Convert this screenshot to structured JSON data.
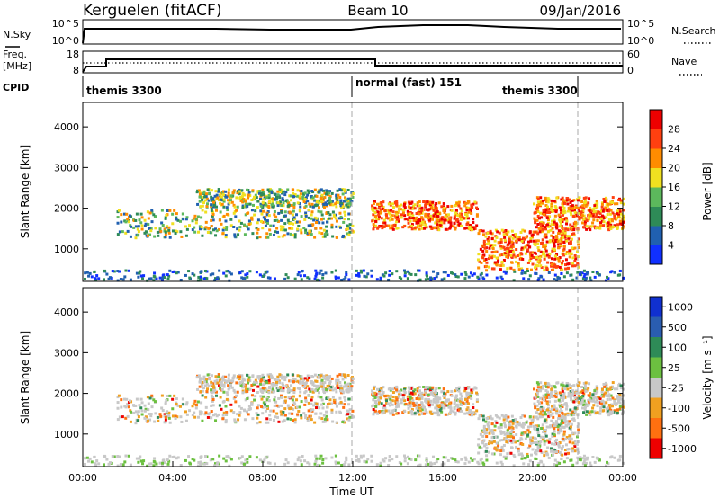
{
  "header": {
    "station": "Kerguelen (fitACF)",
    "beam": "Beam 10",
    "date": "09/Jan/2016"
  },
  "aux_panels": {
    "nsky_label": "N.Sky",
    "nsearch_label": "N.Search",
    "freq_label": "Freq.",
    "freq_unit": "[MHz]",
    "nave_label": "Nave",
    "cpid_label": "CPID",
    "left_ticks_top": [
      "10^5",
      "10^0"
    ],
    "right_ticks_top": [
      "10^5",
      "10^0"
    ],
    "left_ticks_freq": [
      "18",
      "8"
    ],
    "right_ticks_nave": [
      "60",
      "0"
    ],
    "cpid_segments": [
      {
        "label": "themis 3300"
      },
      {
        "label": "normal (fast) 151"
      },
      {
        "label": "themis 3300"
      }
    ]
  },
  "chart_data": [
    {
      "type": "heatmap",
      "ylabel": "Slant Range [km]",
      "ylim": [
        200,
        4600
      ],
      "yticks": [
        "1000",
        "2000",
        "3000",
        "4000"
      ],
      "colorbar": {
        "label": "Power [dB]",
        "ticks": [
          "4",
          "8",
          "12",
          "16",
          "20",
          "24",
          "28"
        ],
        "colors": [
          "#1030ff",
          "#2060b0",
          "#2e8b57",
          "#5cb85c",
          "#f0e020",
          "#ff8c00",
          "#ff4010",
          "#ee0000"
        ]
      },
      "echo_bands": [
        {
          "x0": 1.5,
          "x1": 12.0,
          "y0": 1300,
          "y1": 2000,
          "level": "mid"
        },
        {
          "x0": 5.0,
          "x1": 12.0,
          "y0": 2050,
          "y1": 2500,
          "level": "mid"
        },
        {
          "x0": 12.8,
          "x1": 17.5,
          "y0": 1500,
          "y1": 2200,
          "level": "high"
        },
        {
          "x0": 17.5,
          "x1": 22.0,
          "y0": 500,
          "y1": 1500,
          "level": "high"
        },
        {
          "x0": 20.0,
          "x1": 24.0,
          "y0": 1500,
          "y1": 2300,
          "level": "high"
        }
      ]
    },
    {
      "type": "heatmap",
      "xlabel": "Time UT",
      "ylabel": "Slant Range [km]",
      "ylim": [
        200,
        4600
      ],
      "yticks": [
        "1000",
        "2000",
        "3000",
        "4000"
      ],
      "xticks": [
        "00:00",
        "04:00",
        "08:00",
        "12:00",
        "16:00",
        "20:00",
        "00:00"
      ],
      "colorbar": {
        "label": "Velocity [m s⁻¹]",
        "ticks": [
          "1000",
          "500",
          "100",
          "25",
          "-25",
          "-100",
          "-500",
          "-1000"
        ],
        "colors": [
          "#1030d0",
          "#2a5db0",
          "#2e8b57",
          "#6cc040",
          "#c8c8c8",
          "#f0a020",
          "#ff7010",
          "#ee0000"
        ]
      }
    }
  ]
}
